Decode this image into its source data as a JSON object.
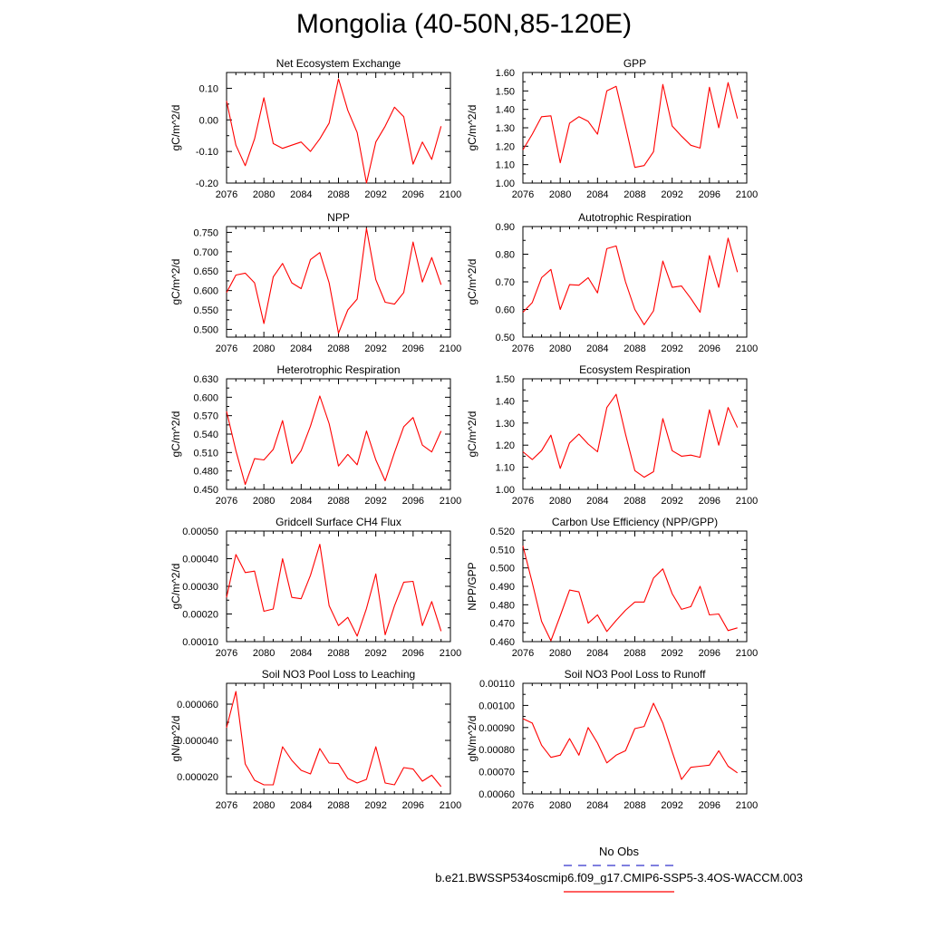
{
  "page_title": "Mongolia (40-50N,85-120E)",
  "colors": {
    "series": "#ff0000",
    "obs": "#3333cc",
    "axis": "#000000"
  },
  "legend": {
    "obs_label": "No Obs",
    "model_label": "b.e21.BWSSP534oscmip6.f09_g17.CMIP6-SSP5-3.4OS-WACCM.003"
  },
  "chart_data": [
    {
      "type": "line",
      "title": "Net Ecosystem Exchange",
      "ylabel": "gC/m^2/d",
      "xlabel": "",
      "x": [
        2076,
        2077,
        2078,
        2079,
        2080,
        2081,
        2082,
        2083,
        2084,
        2085,
        2086,
        2087,
        2088,
        2089,
        2090,
        2091,
        2092,
        2093,
        2094,
        2095,
        2096,
        2097,
        2098,
        2099
      ],
      "series": [
        {
          "name": "b.e21.BWSSP534oscmip6.f09_g17.CMIP6-SSP5-3.4OS-WACCM.003",
          "values": [
            0.06,
            -0.08,
            -0.145,
            -0.06,
            0.07,
            -0.075,
            -0.09,
            -0.08,
            -0.07,
            -0.1,
            -0.06,
            -0.01,
            0.13,
            0.03,
            -0.04,
            -0.2,
            -0.07,
            -0.02,
            0.04,
            0.01,
            -0.14,
            -0.07,
            -0.125,
            -0.02
          ]
        }
      ],
      "xlim": [
        2076,
        2100
      ],
      "xticks": [
        "2076",
        "2080",
        "2084",
        "2088",
        "2092",
        "2096",
        "2100"
      ],
      "ylim": [
        -0.2,
        0.15
      ],
      "yticks": [
        -0.2,
        -0.1,
        0.0,
        0.1
      ],
      "ytick_labels": [
        "-0.20",
        "-0.10",
        "0.00",
        "0.10"
      ]
    },
    {
      "type": "line",
      "title": "GPP",
      "ylabel": "gC/m^2/d",
      "xlabel": "",
      "x": [
        2076,
        2077,
        2078,
        2079,
        2080,
        2081,
        2082,
        2083,
        2084,
        2085,
        2086,
        2087,
        2088,
        2089,
        2090,
        2091,
        2092,
        2093,
        2094,
        2095,
        2096,
        2097,
        2098,
        2099
      ],
      "series": [
        {
          "name": "b.e21.BWSSP534oscmip6.f09_g17.CMIP6-SSP5-3.4OS-WACCM.003",
          "values": [
            1.18,
            1.265,
            1.36,
            1.365,
            1.11,
            1.325,
            1.36,
            1.335,
            1.265,
            1.5,
            1.525,
            1.31,
            1.085,
            1.095,
            1.17,
            1.535,
            1.31,
            1.255,
            1.205,
            1.19,
            1.52,
            1.3,
            1.545,
            1.35
          ]
        }
      ],
      "xlim": [
        2076,
        2100
      ],
      "xticks": [
        "2076",
        "2080",
        "2084",
        "2088",
        "2092",
        "2096",
        "2100"
      ],
      "ylim": [
        1.0,
        1.6
      ],
      "yticks": [
        1.0,
        1.1,
        1.2,
        1.3,
        1.4,
        1.5,
        1.6
      ],
      "ytick_labels": [
        "1.00",
        "1.10",
        "1.20",
        "1.30",
        "1.40",
        "1.50",
        "1.60"
      ]
    },
    {
      "type": "line",
      "title": "NPP",
      "ylabel": "gC/m^2/d",
      "xlabel": "",
      "x": [
        2076,
        2077,
        2078,
        2079,
        2080,
        2081,
        2082,
        2083,
        2084,
        2085,
        2086,
        2087,
        2088,
        2089,
        2090,
        2091,
        2092,
        2093,
        2094,
        2095,
        2096,
        2097,
        2098,
        2099
      ],
      "series": [
        {
          "name": "b.e21.BWSSP534oscmip6.f09_g17.CMIP6-SSP5-3.4OS-WACCM.003",
          "values": [
            0.595,
            0.64,
            0.645,
            0.62,
            0.515,
            0.635,
            0.67,
            0.62,
            0.605,
            0.68,
            0.698,
            0.62,
            0.49,
            0.55,
            0.578,
            0.76,
            0.628,
            0.57,
            0.565,
            0.595,
            0.725,
            0.622,
            0.685,
            0.615
          ]
        }
      ],
      "xlim": [
        2076,
        2100
      ],
      "xticks": [
        "2076",
        "2080",
        "2084",
        "2088",
        "2092",
        "2096",
        "2100"
      ],
      "ylim": [
        0.48,
        0.765
      ],
      "yticks": [
        0.5,
        0.55,
        0.6,
        0.65,
        0.7,
        0.75
      ],
      "ytick_labels": [
        "0.500",
        "0.550",
        "0.600",
        "0.650",
        "0.700",
        "0.750"
      ]
    },
    {
      "type": "line",
      "title": "Autotrophic Respiration",
      "ylabel": "gC/m^2/d",
      "xlabel": "",
      "x": [
        2076,
        2077,
        2078,
        2079,
        2080,
        2081,
        2082,
        2083,
        2084,
        2085,
        2086,
        2087,
        2088,
        2089,
        2090,
        2091,
        2092,
        2093,
        2094,
        2095,
        2096,
        2097,
        2098,
        2099
      ],
      "series": [
        {
          "name": "b.e21.BWSSP534oscmip6.f09_g17.CMIP6-SSP5-3.4OS-WACCM.003",
          "values": [
            0.59,
            0.625,
            0.715,
            0.745,
            0.6,
            0.69,
            0.688,
            0.715,
            0.66,
            0.82,
            0.83,
            0.7,
            0.6,
            0.545,
            0.595,
            0.775,
            0.68,
            0.685,
            0.64,
            0.59,
            0.795,
            0.68,
            0.858,
            0.735
          ]
        }
      ],
      "xlim": [
        2076,
        2100
      ],
      "xticks": [
        "2076",
        "2080",
        "2084",
        "2088",
        "2092",
        "2096",
        "2100"
      ],
      "ylim": [
        0.5,
        0.9
      ],
      "yticks": [
        0.5,
        0.6,
        0.7,
        0.8,
        0.9
      ],
      "ytick_labels": [
        "0.50",
        "0.60",
        "0.70",
        "0.80",
        "0.90"
      ]
    },
    {
      "type": "line",
      "title": "Heterotrophic Respiration",
      "ylabel": "gC/m^2/d",
      "xlabel": "",
      "x": [
        2076,
        2077,
        2078,
        2079,
        2080,
        2081,
        2082,
        2083,
        2084,
        2085,
        2086,
        2087,
        2088,
        2089,
        2090,
        2091,
        2092,
        2093,
        2094,
        2095,
        2096,
        2097,
        2098,
        2099
      ],
      "series": [
        {
          "name": "b.e21.BWSSP534oscmip6.f09_g17.CMIP6-SSP5-3.4OS-WACCM.003",
          "values": [
            0.577,
            0.513,
            0.458,
            0.5,
            0.498,
            0.515,
            0.562,
            0.492,
            0.513,
            0.553,
            0.602,
            0.557,
            0.488,
            0.507,
            0.49,
            0.545,
            0.498,
            0.464,
            0.51,
            0.552,
            0.567,
            0.522,
            0.511,
            0.545
          ]
        }
      ],
      "xlim": [
        2076,
        2100
      ],
      "xticks": [
        "2076",
        "2080",
        "2084",
        "2088",
        "2092",
        "2096",
        "2100"
      ],
      "ylim": [
        0.45,
        0.63
      ],
      "yticks": [
        0.45,
        0.48,
        0.51,
        0.54,
        0.57,
        0.6,
        0.63
      ],
      "ytick_labels": [
        "0.450",
        "0.480",
        "0.510",
        "0.540",
        "0.570",
        "0.600",
        "0.630"
      ]
    },
    {
      "type": "line",
      "title": "Ecosystem Respiration",
      "ylabel": "gC/m^2/d",
      "xlabel": "",
      "x": [
        2076,
        2077,
        2078,
        2079,
        2080,
        2081,
        2082,
        2083,
        2084,
        2085,
        2086,
        2087,
        2088,
        2089,
        2090,
        2091,
        2092,
        2093,
        2094,
        2095,
        2096,
        2097,
        2098,
        2099
      ],
      "series": [
        {
          "name": "b.e21.BWSSP534oscmip6.f09_g17.CMIP6-SSP5-3.4OS-WACCM.003",
          "values": [
            1.17,
            1.135,
            1.175,
            1.245,
            1.095,
            1.21,
            1.25,
            1.205,
            1.17,
            1.37,
            1.43,
            1.25,
            1.085,
            1.055,
            1.08,
            1.32,
            1.175,
            1.15,
            1.155,
            1.145,
            1.36,
            1.2,
            1.37,
            1.28
          ]
        }
      ],
      "xlim": [
        2076,
        2100
      ],
      "xticks": [
        "2076",
        "2080",
        "2084",
        "2088",
        "2092",
        "2096",
        "2100"
      ],
      "ylim": [
        1.0,
        1.5
      ],
      "yticks": [
        1.0,
        1.1,
        1.2,
        1.3,
        1.4,
        1.5
      ],
      "ytick_labels": [
        "1.00",
        "1.10",
        "1.20",
        "1.30",
        "1.40",
        "1.50"
      ]
    },
    {
      "type": "line",
      "title": "Gridcell Surface CH4 Flux",
      "ylabel": "gC/m^2/d",
      "xlabel": "",
      "x": [
        2076,
        2077,
        2078,
        2079,
        2080,
        2081,
        2082,
        2083,
        2084,
        2085,
        2086,
        2087,
        2088,
        2089,
        2090,
        2091,
        2092,
        2093,
        2094,
        2095,
        2096,
        2097,
        2098,
        2099
      ],
      "series": [
        {
          "name": "b.e21.BWSSP534oscmip6.f09_g17.CMIP6-SSP5-3.4OS-WACCM.003",
          "values": [
            0.00026,
            0.000415,
            0.00035,
            0.000355,
            0.00021,
            0.000218,
            0.0004,
            0.00026,
            0.000255,
            0.00034,
            0.000452,
            0.00023,
            0.000158,
            0.000188,
            0.00012,
            0.00022,
            0.000345,
            0.000125,
            0.00023,
            0.000315,
            0.000318,
            0.000158,
            0.000245,
            0.000138
          ]
        }
      ],
      "xlim": [
        2076,
        2100
      ],
      "xticks": [
        "2076",
        "2080",
        "2084",
        "2088",
        "2092",
        "2096",
        "2100"
      ],
      "ylim": [
        0.0001,
        0.0005
      ],
      "yticks": [
        0.0001,
        0.0002,
        0.0003,
        0.0004,
        0.0005
      ],
      "ytick_labels": [
        "0.00010",
        "0.00020",
        "0.00030",
        "0.00040",
        "0.00050"
      ]
    },
    {
      "type": "line",
      "title": "Carbon Use Efficiency (NPP/GPP)",
      "ylabel": "NPP/GPP",
      "xlabel": "",
      "x": [
        2076,
        2077,
        2078,
        2079,
        2080,
        2081,
        2082,
        2083,
        2084,
        2085,
        2086,
        2087,
        2088,
        2089,
        2090,
        2091,
        2092,
        2093,
        2094,
        2095,
        2096,
        2097,
        2098,
        2099
      ],
      "series": [
        {
          "name": "b.e21.BWSSP534oscmip6.f09_g17.CMIP6-SSP5-3.4OS-WACCM.003",
          "values": [
            0.512,
            0.492,
            0.471,
            0.4605,
            0.474,
            0.488,
            0.487,
            0.47,
            0.4745,
            0.4655,
            0.4715,
            0.477,
            0.4815,
            0.4815,
            0.4945,
            0.4995,
            0.486,
            0.4775,
            0.479,
            0.49,
            0.4745,
            0.475,
            0.466,
            0.4675
          ]
        }
      ],
      "xlim": [
        2076,
        2100
      ],
      "xticks": [
        "2076",
        "2080",
        "2084",
        "2088",
        "2092",
        "2096",
        "2100"
      ],
      "ylim": [
        0.46,
        0.52
      ],
      "yticks": [
        0.46,
        0.47,
        0.48,
        0.49,
        0.5,
        0.51,
        0.52
      ],
      "ytick_labels": [
        "0.460",
        "0.470",
        "0.480",
        "0.490",
        "0.500",
        "0.510",
        "0.520"
      ]
    },
    {
      "type": "line",
      "title": "Soil NO3 Pool Loss to Leaching",
      "ylabel": "gN/m^2/d",
      "xlabel": "",
      "x": [
        2076,
        2077,
        2078,
        2079,
        2080,
        2081,
        2082,
        2083,
        2084,
        2085,
        2086,
        2087,
        2088,
        2089,
        2090,
        2091,
        2092,
        2093,
        2094,
        2095,
        2096,
        2097,
        2098,
        2099
      ],
      "series": [
        {
          "name": "b.e21.BWSSP534oscmip6.f09_g17.CMIP6-SSP5-3.4OS-WACCM.003",
          "values": [
            4.7e-05,
            6.7e-05,
            2.7e-05,
            1.8e-05,
            1.55e-05,
            1.55e-05,
            3.65e-05,
            2.9e-05,
            2.35e-05,
            2.15e-05,
            3.55e-05,
            2.75e-05,
            2.72e-05,
            1.9e-05,
            1.65e-05,
            1.85e-05,
            3.65e-05,
            1.65e-05,
            1.55e-05,
            2.5e-05,
            2.42e-05,
            1.75e-05,
            2.08e-05,
            1.45e-05
          ]
        }
      ],
      "xlim": [
        2076,
        2100
      ],
      "xticks": [
        "2076",
        "2080",
        "2084",
        "2088",
        "2092",
        "2096",
        "2100"
      ],
      "ylim": [
        1.05e-05,
        7.15e-05
      ],
      "yticks": [
        2e-05,
        4e-05,
        6e-05
      ],
      "ytick_labels": [
        "0.000020",
        "0.000040",
        "0.000060"
      ]
    },
    {
      "type": "line",
      "title": "Soil NO3 Pool Loss to Runoff",
      "ylabel": "gN/m^2/d",
      "xlabel": "",
      "x": [
        2076,
        2077,
        2078,
        2079,
        2080,
        2081,
        2082,
        2083,
        2084,
        2085,
        2086,
        2087,
        2088,
        2089,
        2090,
        2091,
        2092,
        2093,
        2094,
        2095,
        2096,
        2097,
        2098,
        2099
      ],
      "series": [
        {
          "name": "b.e21.BWSSP534oscmip6.f09_g17.CMIP6-SSP5-3.4OS-WACCM.003",
          "values": [
            0.00094,
            0.00092,
            0.00082,
            0.000765,
            0.000775,
            0.00085,
            0.000775,
            0.0009,
            0.00083,
            0.00074,
            0.000775,
            0.000795,
            0.000895,
            0.000905,
            0.00101,
            0.00092,
            0.00079,
            0.000665,
            0.00072,
            0.000725,
            0.00073,
            0.000795,
            0.000725,
            0.000695
          ]
        }
      ],
      "xlim": [
        2076,
        2100
      ],
      "xticks": [
        "2076",
        "2080",
        "2084",
        "2088",
        "2092",
        "2096",
        "2100"
      ],
      "ylim": [
        0.0006,
        0.0011
      ],
      "yticks": [
        0.0006,
        0.0007,
        0.0008,
        0.0009,
        0.001,
        0.0011
      ],
      "ytick_labels": [
        "0.00060",
        "0.00070",
        "0.00080",
        "0.00090",
        "0.00100",
        "0.00110"
      ]
    }
  ]
}
